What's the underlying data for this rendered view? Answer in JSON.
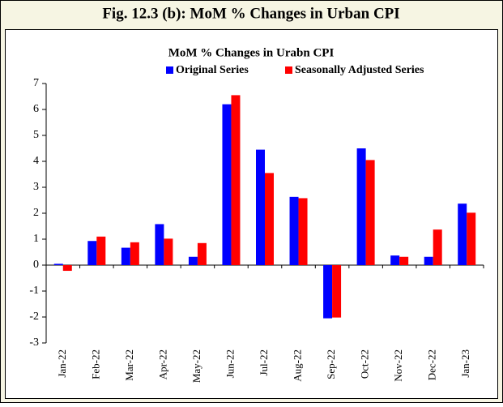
{
  "chart_data": {
    "type": "bar",
    "figure_title": "Fig. 12.3 (b): MoM % Changes in Urban CPI",
    "title": "MoM % Changes in Urabn CPI",
    "categories": [
      "Jan-22",
      "Feb-22",
      "Mar-22",
      "Apr-22",
      "May-22",
      "Jun-22",
      "Jul-22",
      "Aug-22",
      "Sep-22",
      "Oct-22",
      "Nov-22",
      "Dec-22",
      "Jan-23"
    ],
    "series": [
      {
        "name": "Original Series",
        "color": "#0000ff",
        "values": [
          0.05,
          0.93,
          0.67,
          1.58,
          0.32,
          6.2,
          4.45,
          2.63,
          -2.05,
          4.5,
          0.37,
          0.32,
          2.37
        ]
      },
      {
        "name": "Seasonally Adjusted Series",
        "color": "#ff0000",
        "values": [
          -0.22,
          1.1,
          0.88,
          1.02,
          0.85,
          6.55,
          3.55,
          2.58,
          -2.02,
          4.05,
          0.32,
          1.37,
          2.02
        ]
      }
    ],
    "ylim": [
      -3,
      7
    ],
    "yticks": [
      -3,
      -2,
      -1,
      0,
      1,
      2,
      3,
      4,
      5,
      6,
      7
    ],
    "legend": "top",
    "grid": false
  }
}
